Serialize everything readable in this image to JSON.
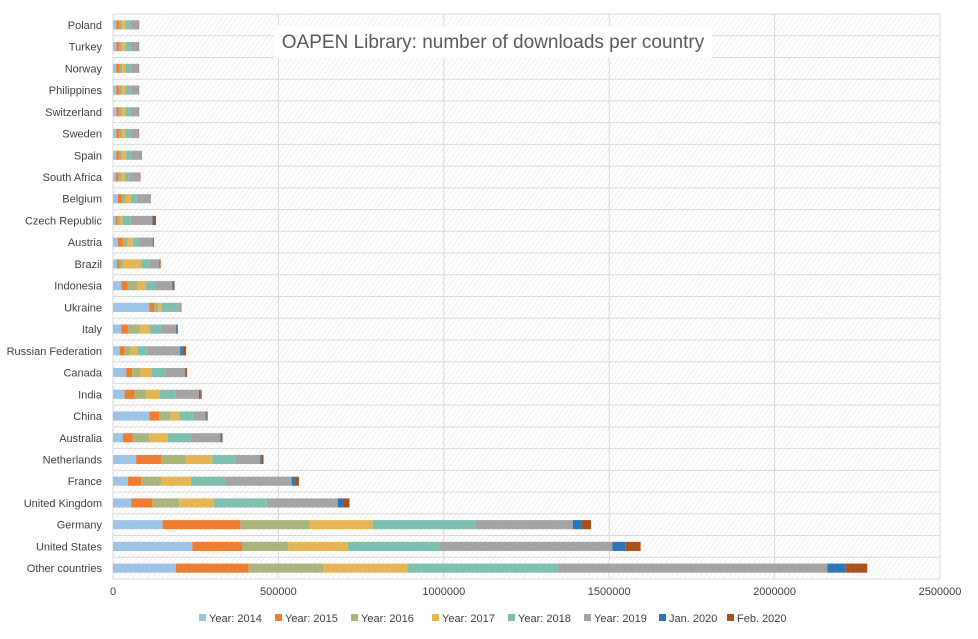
{
  "chart_data": {
    "type": "bar",
    "orientation": "horizontal",
    "stacked": true,
    "title": "OAPEN Library: number of downloads per country",
    "xlabel": "",
    "ylabel": "",
    "xlim": [
      0,
      2500000
    ],
    "xticks": [
      0,
      500000,
      1000000,
      1500000,
      2000000,
      2500000
    ],
    "xtick_labels": [
      "0",
      "500000",
      "1000000",
      "1500000",
      "2000000",
      "2500000"
    ],
    "grid": true,
    "legend_position": "bottom",
    "categories": [
      "Other countries",
      "United States",
      "Germany",
      "United Kingdom",
      "France",
      "Netherlands",
      "Australia",
      "China",
      "India",
      "Canada",
      "Russian Federation",
      "Italy",
      "Ukraine",
      "Indonesia",
      "Brazil",
      "Austria",
      "Czech Republic",
      "Belgium",
      "South Africa",
      "Spain",
      "Sweden",
      "Switzerland",
      "Philippines",
      "Norway",
      "Turkey",
      "Poland"
    ],
    "series": [
      {
        "name": "Year: 2014",
        "color": "#9dc3e6",
        "values": [
          190000,
          240000,
          150000,
          55000,
          45000,
          70000,
          30000,
          110000,
          35000,
          40000,
          20000,
          25000,
          110000,
          25000,
          12000,
          15000,
          8000,
          15000,
          8000,
          10000,
          10000,
          10000,
          10000,
          10000,
          10000,
          10000
        ]
      },
      {
        "name": "Year: 2015",
        "color": "#ed7d31",
        "values": [
          220000,
          150000,
          235000,
          65000,
          40000,
          75000,
          30000,
          30000,
          30000,
          18000,
          15000,
          20000,
          15000,
          20000,
          8000,
          15000,
          5000,
          12000,
          8000,
          8000,
          8000,
          8000,
          8000,
          8000,
          8000,
          8000
        ]
      },
      {
        "name": "Year: 2016",
        "color": "#a9b57c",
        "values": [
          225000,
          140000,
          210000,
          80000,
          60000,
          75000,
          50000,
          35000,
          35000,
          25000,
          18000,
          35000,
          12000,
          30000,
          10000,
          15000,
          8000,
          12000,
          10000,
          10000,
          10000,
          10000,
          10000,
          10000,
          10000,
          10000
        ]
      },
      {
        "name": "Year: 2017",
        "color": "#e6b656",
        "values": [
          255000,
          180000,
          190000,
          105000,
          90000,
          80000,
          55000,
          25000,
          40000,
          35000,
          20000,
          30000,
          10000,
          25000,
          55000,
          15000,
          8000,
          15000,
          10000,
          12000,
          10000,
          10000,
          10000,
          10000,
          10000,
          10000
        ]
      },
      {
        "name": "Year: 2018",
        "color": "#7fbfb0",
        "values": [
          455000,
          280000,
          310000,
          160000,
          105000,
          70000,
          70000,
          45000,
          50000,
          40000,
          30000,
          35000,
          50000,
          30000,
          25000,
          20000,
          25000,
          18000,
          15000,
          15000,
          14000,
          14000,
          14000,
          14000,
          14000,
          14000
        ]
      },
      {
        "name": "Year: 2019",
        "color": "#a5a3a4",
        "values": [
          815000,
          520000,
          295000,
          215000,
          200000,
          75000,
          90000,
          35000,
          70000,
          60000,
          100000,
          45000,
          8000,
          50000,
          30000,
          40000,
          65000,
          40000,
          30000,
          30000,
          25000,
          25000,
          25000,
          25000,
          25000,
          25000
        ]
      },
      {
        "name": "Jan. 2020",
        "color": "#2e75b6",
        "values": [
          55000,
          40000,
          25000,
          15000,
          10000,
          5000,
          3000,
          3000,
          4000,
          3000,
          8000,
          3000,
          1000,
          3000,
          2000,
          2000,
          5000,
          1000,
          1000,
          1000,
          1000,
          1000,
          1000,
          1000,
          1000,
          1000
        ]
      },
      {
        "name": "Feb. 2020",
        "color": "#a9511d",
        "values": [
          65000,
          45000,
          30000,
          20000,
          12000,
          5000,
          3000,
          3000,
          4000,
          3000,
          10000,
          3000,
          1000,
          3000,
          2000,
          2000,
          6000,
          1000,
          1000,
          1000,
          1000,
          1000,
          1000,
          1000,
          1000,
          1000
        ]
      }
    ]
  }
}
